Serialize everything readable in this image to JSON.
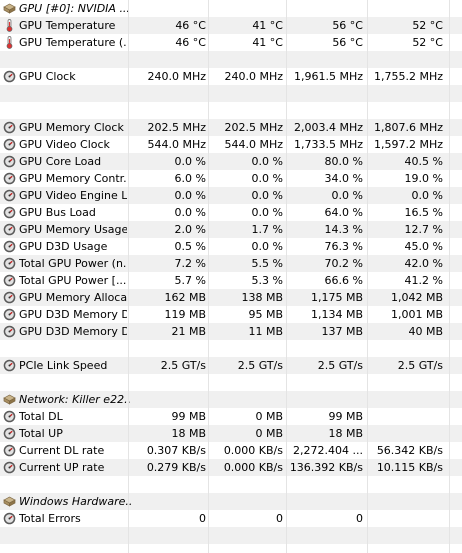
{
  "rows": [
    {
      "type": "header",
      "icon": "gpu-icon",
      "name": "GPU [#0]: NVIDIA ..."
    },
    {
      "type": "data",
      "icon": "thermometer-icon",
      "name": "GPU Temperature",
      "values": [
        "46 °C",
        "41 °C",
        "56 °C",
        "52 °C"
      ]
    },
    {
      "type": "data",
      "icon": "thermometer-icon",
      "name": "GPU Temperature (...",
      "values": [
        "46 °C",
        "41 °C",
        "56 °C",
        "52 °C"
      ]
    },
    {
      "type": "blank"
    },
    {
      "type": "data",
      "icon": "clock-icon",
      "name": "GPU Clock",
      "values": [
        "240.0 MHz",
        "240.0 MHz",
        "1,961.5 MHz",
        "1,755.2 MHz"
      ]
    },
    {
      "type": "blank"
    },
    {
      "type": "blank"
    },
    {
      "type": "data",
      "icon": "clock-icon",
      "name": "GPU Memory Clock",
      "values": [
        "202.5 MHz",
        "202.5 MHz",
        "2,003.4 MHz",
        "1,807.6 MHz"
      ]
    },
    {
      "type": "data",
      "icon": "clock-icon",
      "name": "GPU Video Clock",
      "values": [
        "544.0 MHz",
        "544.0 MHz",
        "1,733.5 MHz",
        "1,597.2 MHz"
      ]
    },
    {
      "type": "data",
      "icon": "clock-icon",
      "name": "GPU Core Load",
      "values": [
        "0.0 %",
        "0.0 %",
        "80.0 %",
        "40.5 %"
      ]
    },
    {
      "type": "data",
      "icon": "clock-icon",
      "name": "GPU Memory Contr...",
      "values": [
        "6.0 %",
        "0.0 %",
        "34.0 %",
        "19.0 %"
      ]
    },
    {
      "type": "data",
      "icon": "clock-icon",
      "name": "GPU Video Engine L...",
      "values": [
        "0.0 %",
        "0.0 %",
        "0.0 %",
        "0.0 %"
      ]
    },
    {
      "type": "data",
      "icon": "clock-icon",
      "name": "GPU Bus Load",
      "values": [
        "0.0 %",
        "0.0 %",
        "64.0 %",
        "16.5 %"
      ]
    },
    {
      "type": "data",
      "icon": "clock-icon",
      "name": "GPU Memory Usage",
      "values": [
        "2.0 %",
        "1.7 %",
        "14.3 %",
        "12.7 %"
      ]
    },
    {
      "type": "data",
      "icon": "clock-icon",
      "name": "GPU D3D Usage",
      "values": [
        "0.5 %",
        "0.0 %",
        "76.3 %",
        "45.0 %"
      ]
    },
    {
      "type": "data",
      "icon": "clock-icon",
      "name": "Total GPU Power (n...",
      "values": [
        "7.2 %",
        "5.5 %",
        "70.2 %",
        "42.0 %"
      ]
    },
    {
      "type": "data",
      "icon": "clock-icon",
      "name": "Total GPU Power [...",
      "values": [
        "5.7 %",
        "5.3 %",
        "66.6 %",
        "41.2 %"
      ]
    },
    {
      "type": "data",
      "icon": "clock-icon",
      "name": "GPU Memory Alloca...",
      "values": [
        "162 MB",
        "138 MB",
        "1,175 MB",
        "1,042 MB"
      ]
    },
    {
      "type": "data",
      "icon": "clock-icon",
      "name": "GPU D3D Memory D...",
      "values": [
        "119 MB",
        "95 MB",
        "1,134 MB",
        "1,001 MB"
      ]
    },
    {
      "type": "data",
      "icon": "clock-icon",
      "name": "GPU D3D Memory D...",
      "values": [
        "21 MB",
        "11 MB",
        "137 MB",
        "40 MB"
      ]
    },
    {
      "type": "blank"
    },
    {
      "type": "data",
      "icon": "clock-icon",
      "name": "PCIe Link Speed",
      "values": [
        "2.5 GT/s",
        "2.5 GT/s",
        "2.5 GT/s",
        "2.5 GT/s"
      ]
    },
    {
      "type": "blank"
    },
    {
      "type": "header",
      "icon": "network-icon",
      "name": "Network: Killer e22..."
    },
    {
      "type": "data",
      "icon": "clock-icon",
      "name": "Total DL",
      "values": [
        "99 MB",
        "0 MB",
        "99 MB",
        ""
      ]
    },
    {
      "type": "data",
      "icon": "clock-icon",
      "name": "Total UP",
      "values": [
        "18 MB",
        "0 MB",
        "18 MB",
        ""
      ]
    },
    {
      "type": "data",
      "icon": "clock-icon",
      "name": "Current DL rate",
      "values": [
        "0.307 KB/s",
        "0.000 KB/s",
        "2,272.404 ...",
        "56.342 KB/s"
      ]
    },
    {
      "type": "data",
      "icon": "clock-icon",
      "name": "Current UP rate",
      "values": [
        "0.279 KB/s",
        "0.000 KB/s",
        "136.392 KB/s",
        "10.115 KB/s"
      ]
    },
    {
      "type": "blank"
    },
    {
      "type": "header",
      "icon": "hardware-icon",
      "name": "Windows Hardware..."
    },
    {
      "type": "data",
      "icon": "clock-icon",
      "name": "Total Errors",
      "values": [
        "0",
        "0",
        "0",
        ""
      ]
    },
    {
      "type": "blank"
    }
  ]
}
